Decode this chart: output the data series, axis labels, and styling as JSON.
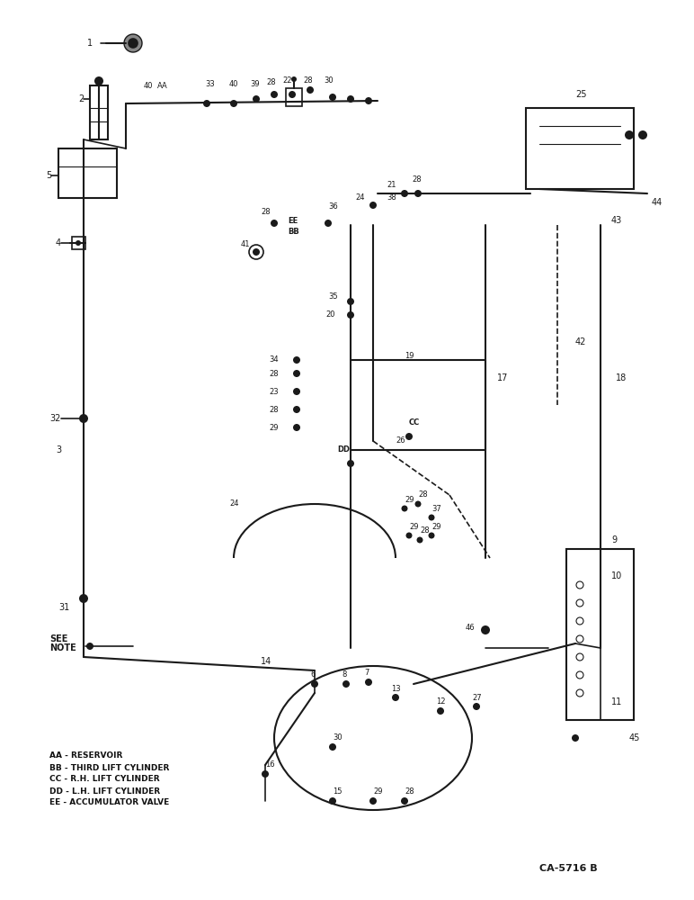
{
  "title": "",
  "background_color": "#ffffff",
  "image_path": null,
  "legend_lines": [
    "AA - RESERVOIR",
    "BB - THIRD LIFT CYLINDER",
    "CC - R.H. LIFT CYLINDER",
    "DD - L.H. LIFT CYLINDER",
    "EE - ACCUMULATOR VALVE"
  ],
  "catalog_number": "CA-5716 B",
  "figure_width": 7.72,
  "figure_height": 10.0,
  "dpi": 100
}
